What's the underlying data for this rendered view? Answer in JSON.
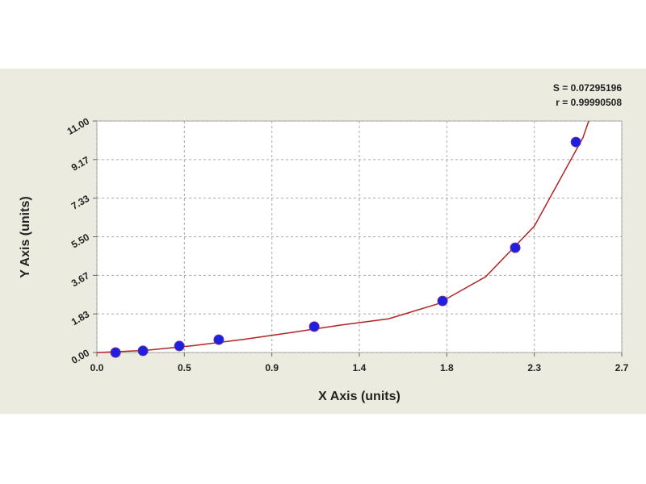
{
  "chart_data": {
    "type": "scatter",
    "x_label": "X Axis (units)",
    "y_label": "Y Axis (units)",
    "annotations": [
      "S = 0.07295196",
      "r = 0.99990508"
    ],
    "x": [
      0.096,
      0.237,
      0.424,
      0.627,
      1.118,
      1.778,
      2.152,
      2.464
    ],
    "values": [
      0.0,
      0.08,
      0.31,
      0.61,
      1.23,
      2.45,
      4.98,
      10.0
    ],
    "color": "#1f1fe0",
    "fit": {
      "color": "#b22222",
      "x": [
        0,
        0.25,
        0.5,
        0.75,
        1.0,
        1.25,
        1.5,
        1.75,
        2.0,
        2.25,
        2.5,
        2.53
      ],
      "y": [
        0,
        0.1,
        0.33,
        0.62,
        0.95,
        1.3,
        1.6,
        2.3,
        3.6,
        6.0,
        10.2,
        11.0
      ]
    },
    "xlim": [
      0,
      2.7
    ],
    "ylim": [
      0,
      11
    ],
    "xticks": [
      {
        "value": 0,
        "label": "0.0"
      },
      {
        "value": 0.45,
        "label": "0.5"
      },
      {
        "value": 0.9,
        "label": "0.9"
      },
      {
        "value": 1.35,
        "label": "1.4"
      },
      {
        "value": 1.8,
        "label": "1.8"
      },
      {
        "value": 2.25,
        "label": "2.3"
      },
      {
        "value": 2.7,
        "label": "2.7"
      }
    ],
    "yticks": [
      {
        "value": 0,
        "label": "0.00"
      },
      {
        "value": 1.8333,
        "label": "1.83"
      },
      {
        "value": 3.6667,
        "label": "3.67"
      },
      {
        "value": 5.5,
        "label": "5.50"
      },
      {
        "value": 7.3333,
        "label": "7.33"
      },
      {
        "value": 9.1667,
        "label": "9.17"
      },
      {
        "value": 11,
        "label": "11.00"
      }
    ],
    "grid": true
  }
}
